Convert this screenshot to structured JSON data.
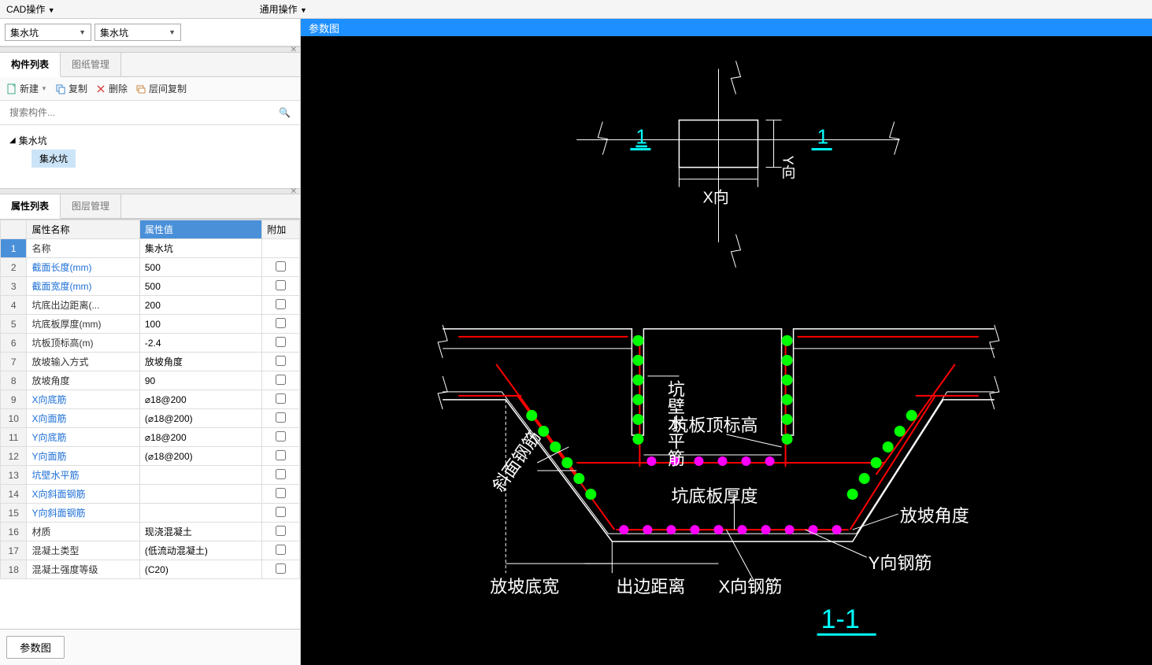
{
  "topToolbar": {
    "cadOps": "CAD操作",
    "commonOps": "通用操作"
  },
  "dropdowns": {
    "d1": "集水坑",
    "d2": "集水坑"
  },
  "componentListTab": "构件列表",
  "drawingMgmtTab": "图纸管理",
  "actions": {
    "new": "新建",
    "copy": "复制",
    "delete": "删除",
    "layerCopy": "层间复制"
  },
  "searchPlaceholder": "搜索构件...",
  "tree": {
    "parent": "集水坑",
    "child": "集水坑"
  },
  "propertyListTab": "属性列表",
  "layerMgmtTab": "图层管理",
  "propHeaders": {
    "name": "属性名称",
    "value": "属性值",
    "extra": "附加"
  },
  "propRows": [
    {
      "num": "1",
      "name": "名称",
      "value": "集水坑",
      "link": false,
      "check": false
    },
    {
      "num": "2",
      "name": "截面长度(mm)",
      "value": "500",
      "link": true,
      "check": true
    },
    {
      "num": "3",
      "name": "截面宽度(mm)",
      "value": "500",
      "link": true,
      "check": true
    },
    {
      "num": "4",
      "name": "坑底出边距离(...",
      "value": "200",
      "link": false,
      "check": true
    },
    {
      "num": "5",
      "name": "坑底板厚度(mm)",
      "value": "100",
      "link": false,
      "check": true
    },
    {
      "num": "6",
      "name": "坑板顶标高(m)",
      "value": "-2.4",
      "link": false,
      "check": true
    },
    {
      "num": "7",
      "name": "放坡输入方式",
      "value": "放坡角度",
      "link": false,
      "check": true
    },
    {
      "num": "8",
      "name": "放坡角度",
      "value": "90",
      "link": false,
      "check": true
    },
    {
      "num": "9",
      "name": "X向底筋",
      "value": "⌀18@200",
      "link": true,
      "check": true
    },
    {
      "num": "10",
      "name": "X向面筋",
      "value": "(⌀18@200)",
      "link": true,
      "check": true
    },
    {
      "num": "11",
      "name": "Y向底筋",
      "value": "⌀18@200",
      "link": true,
      "check": true
    },
    {
      "num": "12",
      "name": "Y向面筋",
      "value": "(⌀18@200)",
      "link": true,
      "check": true
    },
    {
      "num": "13",
      "name": "坑壁水平筋",
      "value": "",
      "link": true,
      "check": true
    },
    {
      "num": "14",
      "name": "X向斜面钢筋",
      "value": "",
      "link": true,
      "check": true
    },
    {
      "num": "15",
      "name": "Y向斜面钢筋",
      "value": "",
      "link": true,
      "check": true
    },
    {
      "num": "16",
      "name": "材质",
      "value": "现浇混凝土",
      "link": false,
      "check": true
    },
    {
      "num": "17",
      "name": "混凝土类型",
      "value": "(低流动混凝土)",
      "link": false,
      "check": true
    },
    {
      "num": "18",
      "name": "混凝土强度等级",
      "value": "(C20)",
      "link": false,
      "check": true
    }
  ],
  "paramBtn": "参数图",
  "rightHeader": "参数图",
  "diagram": {
    "topView": {
      "section1": "1",
      "section1r": "1",
      "xLabel": "X向",
      "yLabel": "Y向"
    },
    "crossSection": {
      "labels": {
        "wallHoriz": "坑壁水平筋",
        "topElev": "坑板顶标高",
        "slabThick": "坑底板厚度",
        "slopeAngle": "放坡角度",
        "yRebar": "Y向钢筋",
        "xRebar": "X向钢筋",
        "edgeDist": "出边距离",
        "slopeWidth": "放坡底宽",
        "diagonal": "斜面钢筋",
        "sectionTitle": "1-1"
      },
      "colors": {
        "outline": "#ffffff",
        "rebar_red": "#ff0000",
        "dots_green": "#00ff00",
        "dots_magenta": "#ff00ff",
        "label_cyan": "#00ffff"
      }
    }
  }
}
